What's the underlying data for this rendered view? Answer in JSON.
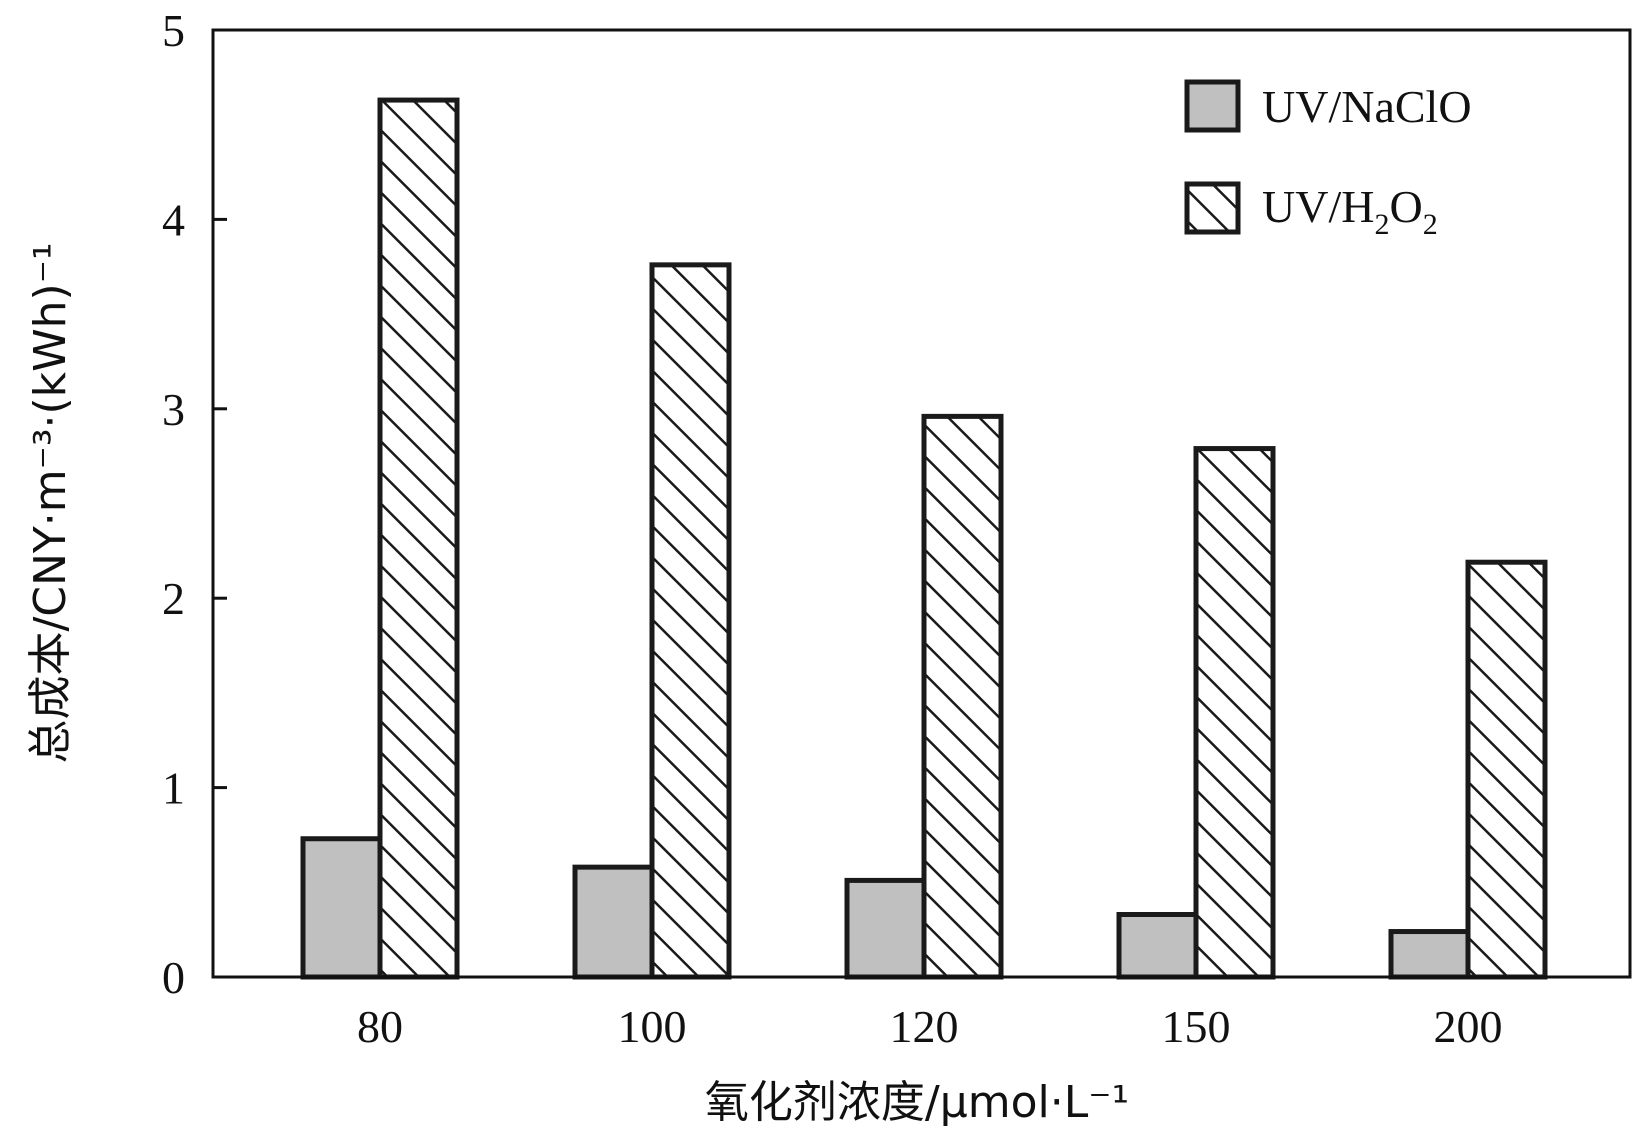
{
  "chart_data": {
    "type": "bar",
    "categories": [
      "80",
      "100",
      "120",
      "150",
      "200"
    ],
    "series": [
      {
        "name": "UV/NaClO",
        "values": [
          0.73,
          0.58,
          0.51,
          0.33,
          0.24
        ],
        "fill": "#c0c0c0",
        "pattern": "solid"
      },
      {
        "name": "UV/H2O2",
        "values": [
          4.63,
          3.76,
          2.96,
          2.79,
          2.19
        ],
        "fill": "#ffffff",
        "pattern": "hatched"
      }
    ],
    "title": "",
    "xlabel": "氧化剂浓度/μmol·L⁻¹",
    "ylabel": "总成本/CNY·m⁻³·(kWh)⁻¹",
    "ylim": [
      0,
      5
    ],
    "yticks": [
      "0",
      "1",
      "2",
      "3",
      "4",
      "5"
    ],
    "grid": false,
    "legend_position": "top-right"
  },
  "colors": {
    "axis": "#111111",
    "bar_outline": "#1a1a1a"
  }
}
